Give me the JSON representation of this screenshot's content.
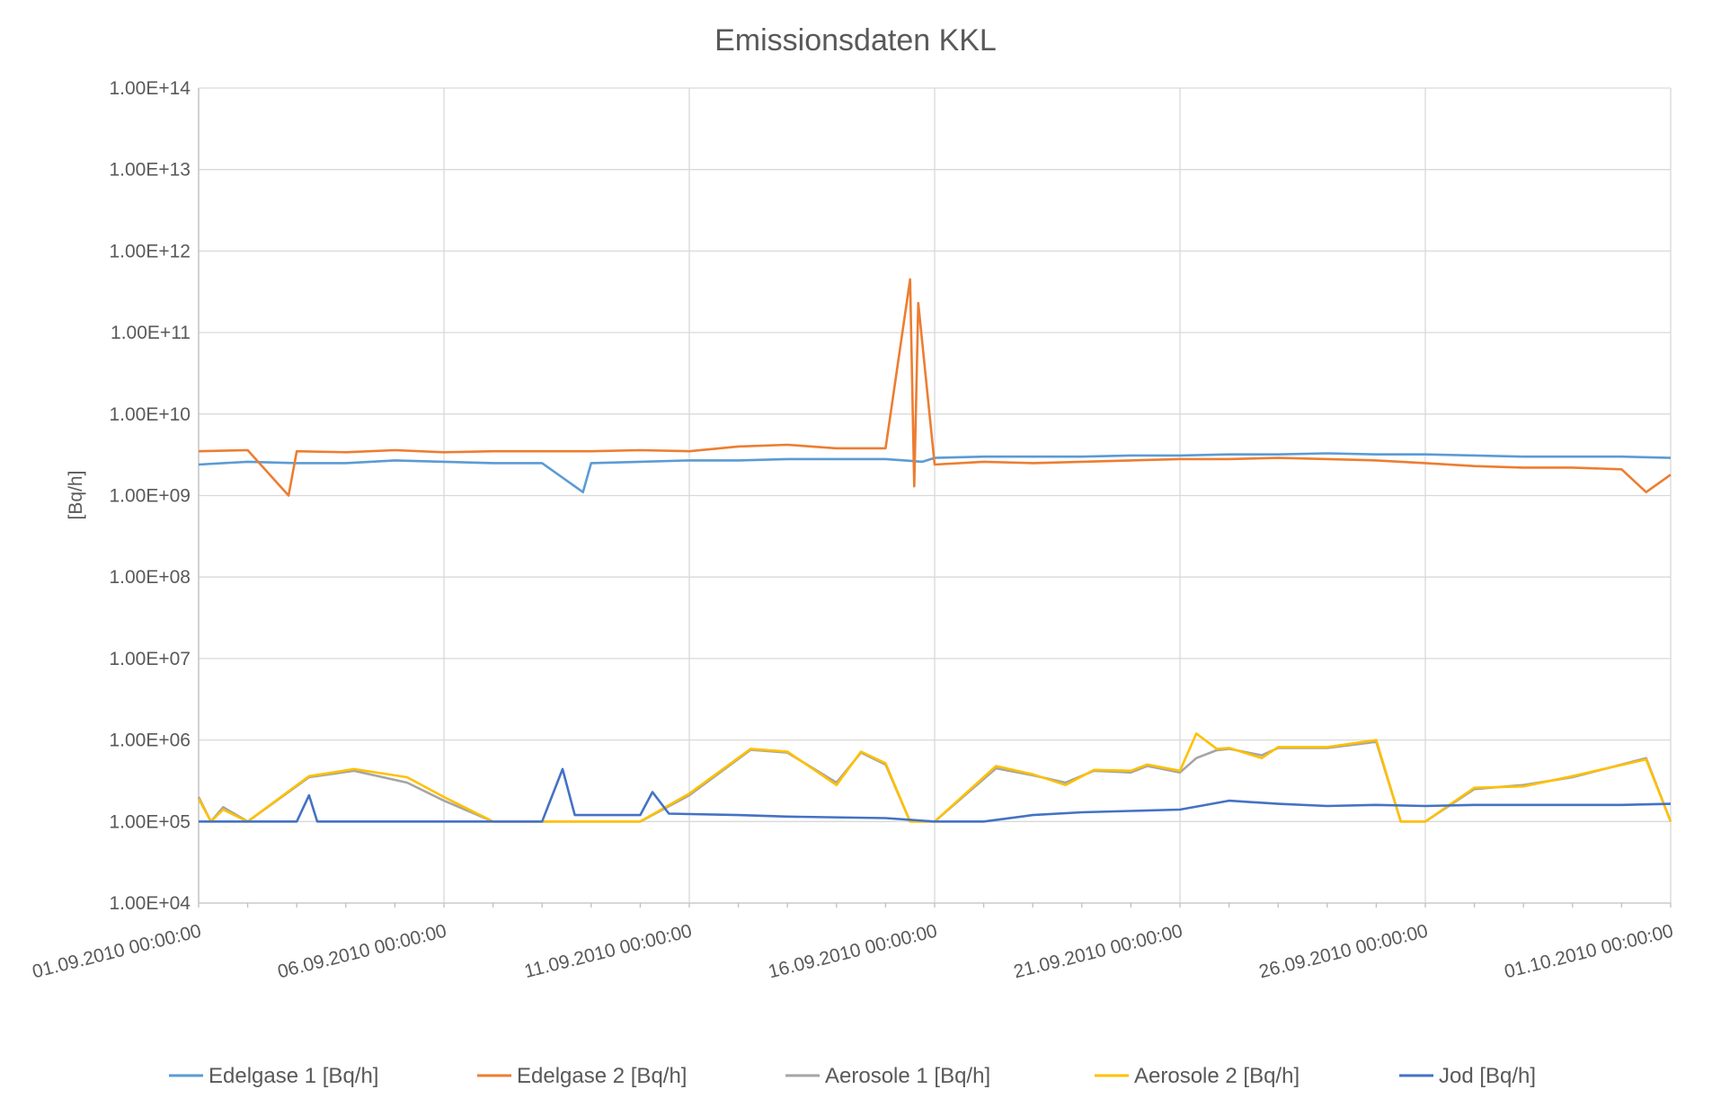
{
  "chart_data": {
    "type": "line",
    "title": "Emissionsdaten KKL",
    "ylabel": "[Bq/h]",
    "xlabel": "",
    "yscale": "log",
    "ylim": [
      10000,
      100000000000000
    ],
    "y_ticks": [
      10000,
      100000,
      1000000,
      10000000,
      100000000,
      1000000000,
      10000000000,
      100000000000,
      1000000000000,
      10000000000000,
      100000000000000
    ],
    "y_tick_labels": [
      "1.00E+04",
      "1.00E+05",
      "1.00E+06",
      "1.00E+07",
      "1.00E+08",
      "1.00E+09",
      "1.00E+10",
      "1.00E+11",
      "1.00E+12",
      "1.00E+13",
      "1.00E+14"
    ],
    "xlim": [
      "01.09.2010 00:00:00",
      "01.10.2010 00:00:00"
    ],
    "x_tick_labels": [
      "01.09.2010 00:00:00",
      "06.09.2010 00:00:00",
      "11.09.2010 00:00:00",
      "16.09.2010 00:00:00",
      "21.09.2010 00:00:00",
      "26.09.2010 00:00:00",
      "01.10.2010 00:00:00"
    ],
    "grid": true,
    "legend_position": "bottom",
    "series": [
      {
        "name": "Edelgase 1 [Bq/h]",
        "color": "#5b9bd5",
        "x": [
          "01.09.2010",
          "02.09.2010",
          "03.09.2010",
          "04.09.2010",
          "05.09.2010",
          "06.09.2010",
          "07.09.2010",
          "08.09.2010",
          "08.09.2010 20:00",
          "09.09.2010",
          "10.09.2010",
          "11.09.2010",
          "12.09.2010",
          "13.09.2010",
          "14.09.2010",
          "15.09.2010",
          "15.09.2010 18:00",
          "16.09.2010",
          "17.09.2010",
          "18.09.2010",
          "19.09.2010",
          "20.09.2010",
          "21.09.2010",
          "22.09.2010",
          "23.09.2010",
          "24.09.2010",
          "25.09.2010",
          "26.09.2010",
          "27.09.2010",
          "28.09.2010",
          "29.09.2010",
          "30.09.2010",
          "01.10.2010"
        ],
        "y": [
          2400000000,
          2600000000,
          2500000000,
          2500000000,
          2700000000,
          2600000000,
          2500000000,
          2500000000,
          1100000000,
          2500000000,
          2600000000,
          2700000000,
          2700000000,
          2800000000,
          2800000000,
          2800000000,
          2600000000,
          2900000000,
          3000000000,
          3000000000,
          3000000000,
          3100000000,
          3100000000,
          3200000000,
          3200000000,
          3300000000,
          3200000000,
          3200000000,
          3100000000,
          3000000000,
          3000000000,
          3000000000,
          2900000000
        ]
      },
      {
        "name": "Edelgase 2 [Bq/h]",
        "color": "#ed7d31",
        "x": [
          "01.09.2010",
          "02.09.2010",
          "02.09.2010 20:00",
          "03.09.2010",
          "04.09.2010",
          "05.09.2010",
          "06.09.2010",
          "07.09.2010",
          "08.09.2010",
          "09.09.2010",
          "10.09.2010",
          "11.09.2010",
          "12.09.2010",
          "13.09.2010",
          "14.09.2010",
          "15.09.2010",
          "15.09.2010 12:00",
          "15.09.2010 14:00",
          "15.09.2010 16:00",
          "16.09.2010",
          "17.09.2010",
          "18.09.2010",
          "19.09.2010",
          "20.09.2010",
          "21.09.2010",
          "22.09.2010",
          "23.09.2010",
          "24.09.2010",
          "25.09.2010",
          "26.09.2010",
          "27.09.2010",
          "28.09.2010",
          "29.09.2010",
          "30.09.2010",
          "30.09.2010 12:00",
          "01.10.2010"
        ],
        "y": [
          3500000000,
          3600000000,
          1000000000,
          3500000000,
          3400000000,
          3600000000,
          3400000000,
          3500000000,
          3500000000,
          3500000000,
          3600000000,
          3500000000,
          4000000000,
          4200000000,
          3800000000,
          3800000000,
          450000000000,
          1300000000,
          230000000000,
          2400000000,
          2600000000,
          2500000000,
          2600000000,
          2700000000,
          2800000000,
          2800000000,
          2900000000,
          2800000000,
          2700000000,
          2500000000,
          2300000000,
          2200000000,
          2200000000,
          2100000000,
          1100000000,
          1800000000
        ]
      },
      {
        "name": "Aerosole 1 [Bq/h]",
        "color": "#a5a5a5",
        "x": [
          "01.09.2010",
          "01.09.2010 06:00",
          "01.09.2010 12:00",
          "02.09.2010",
          "03.09.2010 06:00",
          "04.09.2010 04:00",
          "05.09.2010 06:00",
          "06.09.2010",
          "07.09.2010",
          "08.09.2010",
          "09.09.2010",
          "10.09.2010",
          "11.09.2010",
          "12.09.2010 06:00",
          "13.09.2010",
          "14.09.2010",
          "14.09.2010 12:00",
          "15.09.2010",
          "15.09.2010 12:00",
          "16.09.2010",
          "17.09.2010 06:00",
          "18.09.2010",
          "18.09.2010 16:00",
          "19.09.2010 06:00",
          "20.09.2010",
          "20.09.2010 08:00",
          "21.09.2010",
          "21.09.2010 08:00",
          "21.09.2010 18:00",
          "22.09.2010",
          "22.09.2010 16:00",
          "23.09.2010",
          "24.09.2010",
          "25.09.2010",
          "25.09.2010 12:00",
          "26.09.2010",
          "27.09.2010",
          "28.09.2010",
          "29.09.2010",
          "30.09.2010 12:00",
          "01.10.2010"
        ],
        "y": [
          200000,
          100000,
          150000,
          100000,
          350000,
          420000,
          300000,
          180000,
          100000,
          100000,
          100000,
          100000,
          210000,
          760000,
          700000,
          300000,
          700000,
          500000,
          100000,
          100000,
          450000,
          370000,
          300000,
          420000,
          400000,
          480000,
          400000,
          600000,
          750000,
          780000,
          650000,
          800000,
          800000,
          950000,
          100000,
          100000,
          250000,
          280000,
          350000,
          600000,
          100000
        ]
      },
      {
        "name": "Aerosole 2 [Bq/h]",
        "color": "#ffc000",
        "x": [
          "01.09.2010",
          "01.09.2010 06:00",
          "01.09.2010 12:00",
          "02.09.2010",
          "03.09.2010 06:00",
          "04.09.2010 04:00",
          "05.09.2010 06:00",
          "06.09.2010",
          "07.09.2010",
          "08.09.2010",
          "09.09.2010",
          "10.09.2010",
          "11.09.2010",
          "12.09.2010 06:00",
          "13.09.2010",
          "14.09.2010",
          "14.09.2010 12:00",
          "15.09.2010",
          "15.09.2010 12:00",
          "16.09.2010",
          "17.09.2010 06:00",
          "18.09.2010",
          "18.09.2010 16:00",
          "19.09.2010 06:00",
          "20.09.2010",
          "20.09.2010 08:00",
          "21.09.2010",
          "21.09.2010 08:00",
          "21.09.2010 18:00",
          "22.09.2010",
          "22.09.2010 16:00",
          "23.09.2010",
          "24.09.2010",
          "25.09.2010",
          "25.09.2010 12:00",
          "26.09.2010",
          "27.09.2010",
          "28.09.2010",
          "29.09.2010",
          "30.09.2010 12:00",
          "01.10.2010"
        ],
        "y": [
          190000,
          100000,
          140000,
          100000,
          360000,
          440000,
          350000,
          200000,
          100000,
          100000,
          100000,
          100000,
          220000,
          780000,
          720000,
          280000,
          720000,
          520000,
          100000,
          100000,
          480000,
          380000,
          280000,
          430000,
          420000,
          500000,
          420000,
          1200000,
          780000,
          800000,
          600000,
          820000,
          820000,
          1000000,
          100000,
          100000,
          260000,
          270000,
          360000,
          580000,
          100000
        ]
      },
      {
        "name": "Jod [Bq/h]",
        "color": "#4472c4",
        "x": [
          "01.09.2010",
          "03.09.2010",
          "03.09.2010 06:00",
          "03.09.2010 10:00",
          "04.09.2010",
          "06.09.2010",
          "08.09.2010",
          "08.09.2010 10:00",
          "08.09.2010 16:00",
          "09.09.2010",
          "10.09.2010",
          "10.09.2010 06:00",
          "10.09.2010 14:00",
          "12.09.2010",
          "13.09.2010",
          "15.09.2010",
          "16.09.2010",
          "17.09.2010",
          "18.09.2010",
          "19.09.2010",
          "20.09.2010",
          "21.09.2010",
          "22.09.2010",
          "23.09.2010",
          "24.09.2010",
          "25.09.2010",
          "26.09.2010",
          "27.09.2010",
          "28.09.2010",
          "29.09.2010",
          "30.09.2010",
          "01.10.2010"
        ],
        "y": [
          100000,
          100000,
          210000,
          100000,
          100000,
          100000,
          100000,
          440000,
          120000,
          120000,
          120000,
          230000,
          125000,
          120000,
          115000,
          110000,
          100000,
          100000,
          120000,
          130000,
          135000,
          140000,
          180000,
          165000,
          155000,
          160000,
          155000,
          160000,
          160000,
          160000,
          160000,
          165000
        ]
      }
    ]
  }
}
